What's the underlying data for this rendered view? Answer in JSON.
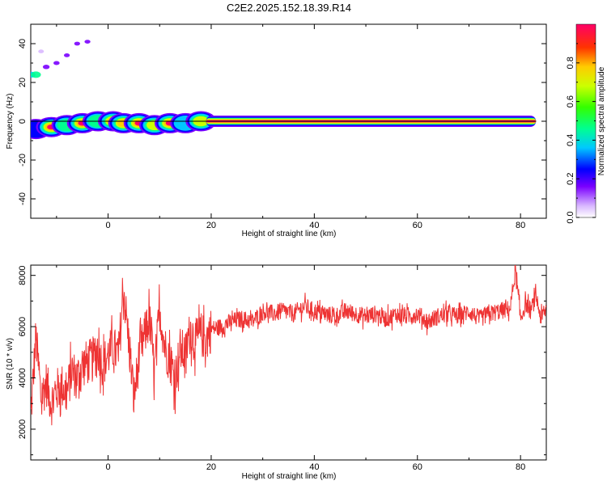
{
  "title": "C2E2.2025.152.18.39.R14",
  "colors": {
    "snr_line": "#ee3333",
    "track_line": "#000000",
    "background": "#ffffff"
  },
  "chart_data": [
    {
      "type": "heatmap",
      "name": "spectrogram",
      "xlabel": "Height of straight line (km)",
      "ylabel": "Frequency (Hz)",
      "xlim": [
        -15,
        85
      ],
      "ylim": [
        -50,
        50
      ],
      "xticks": [
        0,
        20,
        40,
        60,
        80
      ],
      "yticks": [
        -40,
        -20,
        0,
        20,
        40
      ],
      "grid": false,
      "colormap": "rainbow",
      "track_frequency_hz": 0,
      "blobs": [
        {
          "x": -14,
          "y": -4,
          "amp": 0.25
        },
        {
          "x": -11,
          "y": -3,
          "amp": 0.9
        },
        {
          "x": -8,
          "y": -2,
          "amp": 0.45
        },
        {
          "x": -5,
          "y": -1,
          "amp": 0.9
        },
        {
          "x": -2,
          "y": 0,
          "amp": 0.55
        },
        {
          "x": 1,
          "y": 0,
          "amp": 0.95
        },
        {
          "x": 3,
          "y": -1,
          "amp": 0.85
        },
        {
          "x": 6,
          "y": -1,
          "amp": 0.9
        },
        {
          "x": 9,
          "y": -2,
          "amp": 0.6
        },
        {
          "x": 12,
          "y": -1,
          "amp": 0.95
        },
        {
          "x": 15,
          "y": -1,
          "amp": 0.4
        },
        {
          "x": 18,
          "y": 0,
          "amp": 0.7
        }
      ],
      "track": {
        "x_start": 19,
        "x_end": 83,
        "y": 0,
        "amp": 0.95
      },
      "faint_points": [
        {
          "x": -15,
          "y": 24,
          "amp": 0.35
        },
        {
          "x": -14,
          "y": 24,
          "amp": 0.4
        },
        {
          "x": -12,
          "y": 28,
          "amp": 0.15
        },
        {
          "x": -10,
          "y": 30,
          "amp": 0.1
        },
        {
          "x": -8,
          "y": 34,
          "amp": 0.08
        },
        {
          "x": -6,
          "y": 40,
          "amp": 0.08
        },
        {
          "x": -4,
          "y": 41,
          "amp": 0.08
        },
        {
          "x": -13,
          "y": 36,
          "amp": 0.06
        }
      ]
    },
    {
      "type": "line",
      "name": "snr",
      "xlabel": "Height of straight line (km)",
      "ylabel": "SNR (10 * v/v)",
      "xlim": [
        -15,
        85
      ],
      "ylim": [
        800,
        8400
      ],
      "xticks": [
        0,
        20,
        40,
        60,
        80
      ],
      "yticks": [
        2000,
        4000,
        6000,
        8000
      ],
      "grid": false,
      "x": [
        -15,
        -14,
        -13,
        -12,
        -11,
        -10,
        -9,
        -8,
        -7,
        -6,
        -5,
        -4,
        -3,
        -2,
        -1,
        0,
        1,
        2,
        3,
        4,
        5,
        6,
        7,
        8,
        9,
        10,
        11,
        12,
        13,
        14,
        15,
        16,
        17,
        18,
        19,
        20,
        22,
        24,
        26,
        28,
        30,
        32,
        34,
        36,
        38,
        40,
        42,
        44,
        46,
        48,
        50,
        52,
        54,
        56,
        58,
        60,
        62,
        64,
        66,
        68,
        70,
        72,
        74,
        76,
        78,
        79,
        80,
        81,
        82,
        83,
        84,
        85
      ],
      "values": [
        2500,
        5600,
        3200,
        3800,
        3000,
        3500,
        3700,
        3400,
        4300,
        4000,
        4500,
        4600,
        4700,
        5100,
        4500,
        4900,
        5200,
        4800,
        7500,
        5400,
        3200,
        4800,
        5600,
        6300,
        4200,
        6700,
        5200,
        4700,
        4000,
        5100,
        4900,
        5900,
        5400,
        5700,
        5500,
        5900,
        6000,
        6200,
        6300,
        6200,
        6600,
        6500,
        6600,
        6500,
        6800,
        6600,
        6500,
        6400,
        6600,
        6500,
        6400,
        6500,
        6300,
        6500,
        6400,
        6500,
        6200,
        6400,
        6500,
        6400,
        6600,
        6300,
        6500,
        6600,
        6700,
        8200,
        6300,
        6900,
        6600,
        7200,
        6300,
        6700
      ]
    }
  ],
  "colorbar": {
    "label": "Normalized spectral amplitude",
    "ticks": [
      "0.0",
      "0.2",
      "0.4",
      "0.6",
      "0.8"
    ],
    "tick_values": [
      0.0,
      0.2,
      0.4,
      0.6,
      0.8
    ],
    "range": [
      0,
      1
    ]
  }
}
